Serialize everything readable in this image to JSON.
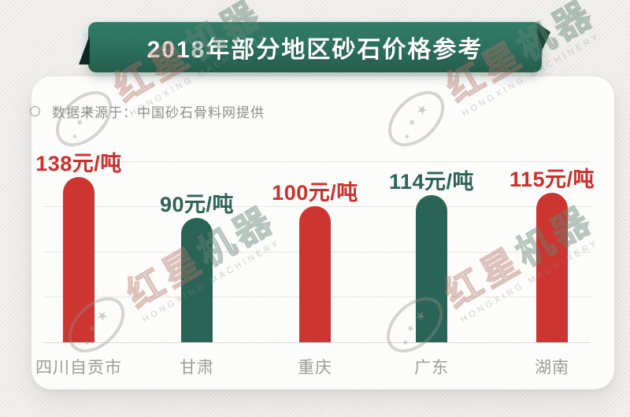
{
  "banner": {
    "title": "2018年部分地区砂石价格参考"
  },
  "source": {
    "text": "数据来源于：中国砂石骨料网提供"
  },
  "chart_data": {
    "type": "bar",
    "title": "2018年部分地区砂石价格参考",
    "source": "数据来源于：中国砂石骨料网提供",
    "categories": [
      "四川自贡市",
      "甘肃",
      "重庆",
      "广东",
      "湖南"
    ],
    "values": [
      138,
      90,
      100,
      114,
      115
    ],
    "unit": "元/吨",
    "value_labels": [
      "138元/吨",
      "90元/吨",
      "100元/吨",
      "114元/吨",
      "115元/吨"
    ],
    "bar_colors": [
      "#cd3531",
      "#2a6456",
      "#cd3531",
      "#2a6456",
      "#cd3531"
    ],
    "label_colors": [
      "#cd2f2b",
      "#2a6456",
      "#cd2f2b",
      "#2a6456",
      "#cd2f2b"
    ],
    "xlabel": "",
    "ylabel": "",
    "gridlines": true,
    "legend": false,
    "baseline_value": 0
  },
  "watermark": {
    "cn_first": "红星",
    "cn_second": "机器",
    "en": "HONGXING MACHINERY"
  },
  "colors": {
    "banner_green_top": "#327c67",
    "banner_green_bottom": "#265c4c",
    "ribbon_fold_dark": "#0e2a20",
    "bar_red": "#cd3531",
    "bar_green": "#2a6456",
    "grid": "#e7e5e2",
    "text_gray": "#8d8d8d",
    "category_gray": "#9b9b9b"
  }
}
